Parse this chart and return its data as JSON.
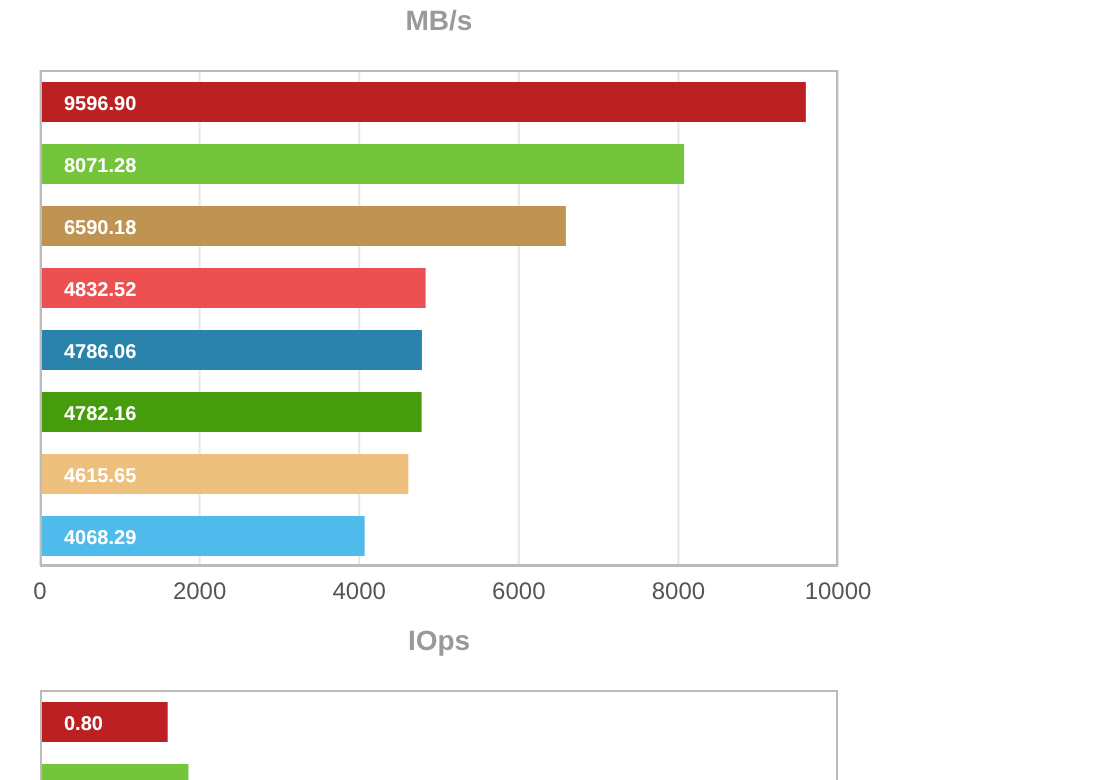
{
  "chart_data": [
    {
      "type": "bar",
      "orientation": "horizontal",
      "title": "MB/s",
      "categories": [
        null,
        null,
        null,
        null,
        null,
        null,
        null,
        null
      ],
      "values": [
        9596.9,
        8071.28,
        6590.18,
        4832.52,
        4786.06,
        4782.16,
        4615.65,
        4068.29
      ],
      "value_labels": [
        "9596.90",
        "8071.28",
        "6590.18",
        "4832.52",
        "4786.06",
        "4782.16",
        "4615.65",
        "4068.29"
      ],
      "colors": [
        "#bc2023",
        "#74c43c",
        "#bf9452",
        "#ec5050",
        "#2a83ab",
        "#479c0e",
        "#edc07e",
        "#4fbaec"
      ],
      "xlim": [
        0,
        10000
      ],
      "xticks": [
        0,
        2000,
        4000,
        6000,
        8000,
        10000
      ],
      "grid": "x"
    },
    {
      "type": "bar",
      "orientation": "horizontal",
      "title": "IOps",
      "categories": [
        null,
        null
      ],
      "values": [
        0.8,
        0.93
      ],
      "value_labels": [
        "0.80",
        null
      ],
      "colors": [
        "#bc2023",
        "#74c43c"
      ],
      "xlim": [
        0,
        5
      ],
      "grid": "x",
      "tick_labels": false
    }
  ]
}
